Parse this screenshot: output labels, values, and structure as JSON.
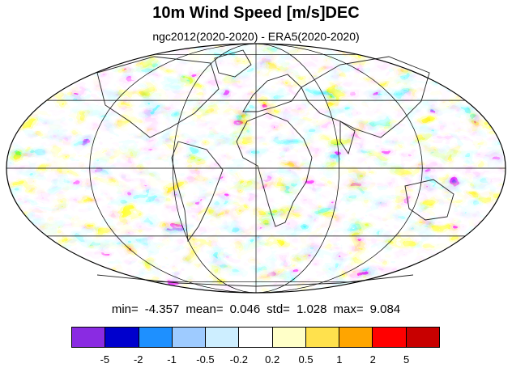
{
  "title": "10m Wind Speed [m/s]DEC",
  "subtitle": "ngc2012(2020-2020) - ERA5(2020-2020)",
  "stats": {
    "min_label": "min=",
    "min": "-4.357",
    "mean_label": "mean=",
    "mean": "0.046",
    "std_label": "std=",
    "std": "1.028",
    "max_label": "max=",
    "max": "9.084"
  },
  "colorbar": {
    "colors": [
      "#8a2be2",
      "#0000cd",
      "#1e90ff",
      "#9ecbff",
      "#cdeeff",
      "#ffffff",
      "#ffffc8",
      "#ffe14d",
      "#ffa500",
      "#ff0000",
      "#c80000"
    ],
    "tick_labels": [
      "-5",
      "-2",
      "-1",
      "-0.5",
      "-0.2",
      "0.2",
      "0.5",
      "1",
      "2",
      "5"
    ]
  },
  "map": {
    "projection": "mollweide",
    "field_description": "wind speed difference field, banded colour contours"
  }
}
